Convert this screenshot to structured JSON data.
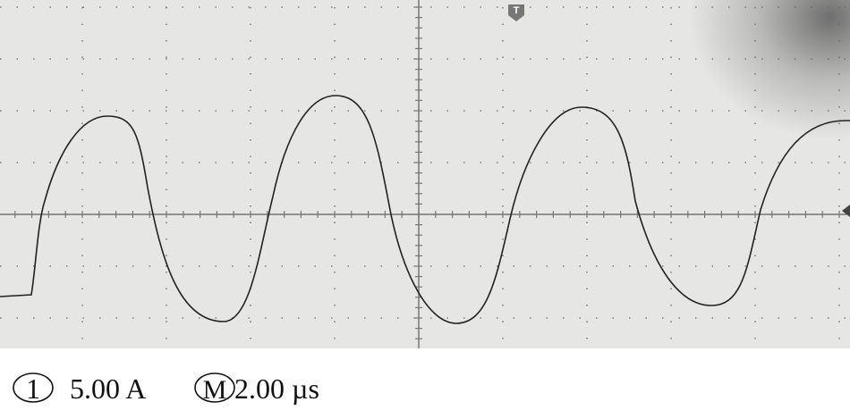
{
  "channel": {
    "number": "1",
    "scale": "5.00 A"
  },
  "timebase": {
    "label": "M",
    "scale": "2.00 µs"
  },
  "trigger": {
    "label": "T"
  }
}
